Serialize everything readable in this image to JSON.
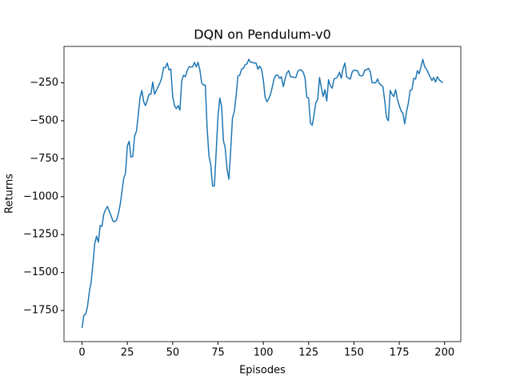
{
  "chart_data": {
    "type": "line",
    "title": "DQN on Pendulum-v0",
    "x_label": "Episodes",
    "y_label": "Returns",
    "series": [
      {
        "name": "DQN",
        "color": "#1f77b4",
        "values": [
          -1865,
          -1780,
          -1775,
          -1725,
          -1630,
          -1565,
          -1445,
          -1310,
          -1260,
          -1300,
          -1190,
          -1195,
          -1115,
          -1085,
          -1065,
          -1095,
          -1125,
          -1160,
          -1165,
          -1155,
          -1115,
          -1055,
          -970,
          -880,
          -845,
          -665,
          -635,
          -740,
          -735,
          -600,
          -570,
          -465,
          -345,
          -300,
          -375,
          -400,
          -365,
          -325,
          -325,
          -245,
          -325,
          -300,
          -275,
          -250,
          -215,
          -150,
          -150,
          -120,
          -165,
          -160,
          -340,
          -400,
          -420,
          -400,
          -430,
          -235,
          -200,
          -210,
          -170,
          -145,
          -145,
          -145,
          -115,
          -145,
          -115,
          -165,
          -250,
          -265,
          -265,
          -545,
          -730,
          -790,
          -930,
          -930,
          -705,
          -470,
          -350,
          -405,
          -630,
          -680,
          -820,
          -885,
          -695,
          -480,
          -440,
          -335,
          -205,
          -200,
          -160,
          -155,
          -130,
          -125,
          -95,
          -115,
          -115,
          -120,
          -120,
          -160,
          -140,
          -160,
          -230,
          -345,
          -375,
          -355,
          -325,
          -275,
          -220,
          -200,
          -200,
          -220,
          -210,
          -275,
          -225,
          -185,
          -170,
          -210,
          -210,
          -215,
          -215,
          -175,
          -165,
          -165,
          -180,
          -215,
          -345,
          -350,
          -515,
          -530,
          -460,
          -380,
          -360,
          -215,
          -280,
          -340,
          -295,
          -370,
          -230,
          -270,
          -285,
          -225,
          -220,
          -210,
          -180,
          -220,
          -155,
          -120,
          -210,
          -220,
          -225,
          -180,
          -165,
          -170,
          -170,
          -200,
          -205,
          -200,
          -165,
          -165,
          -155,
          -175,
          -250,
          -250,
          -250,
          -225,
          -255,
          -265,
          -275,
          -370,
          -480,
          -500,
          -300,
          -325,
          -340,
          -295,
          -360,
          -400,
          -435,
          -450,
          -520,
          -440,
          -385,
          -300,
          -295,
          -220,
          -225,
          -170,
          -190,
          -145,
          -95,
          -145,
          -160,
          -185,
          -210,
          -235,
          -215,
          -245,
          -210,
          -230,
          -240,
          -250
        ]
      }
    ],
    "xlim": [
      -9.95,
      208.95
    ],
    "xticks": [
      0,
      25,
      50,
      75,
      100,
      125,
      150,
      175,
      200
    ],
    "ylim": [
      -1955,
      -10
    ],
    "yticks": [
      {
        "value": -1750,
        "label": "−1750"
      },
      {
        "value": -1500,
        "label": "−1500"
      },
      {
        "value": -1250,
        "label": "−1250"
      },
      {
        "value": -1000,
        "label": "−1000"
      },
      {
        "value": -750,
        "label": "−750"
      },
      {
        "value": -500,
        "label": "−500"
      },
      {
        "value": -250,
        "label": "−250"
      }
    ],
    "grid": false
  }
}
